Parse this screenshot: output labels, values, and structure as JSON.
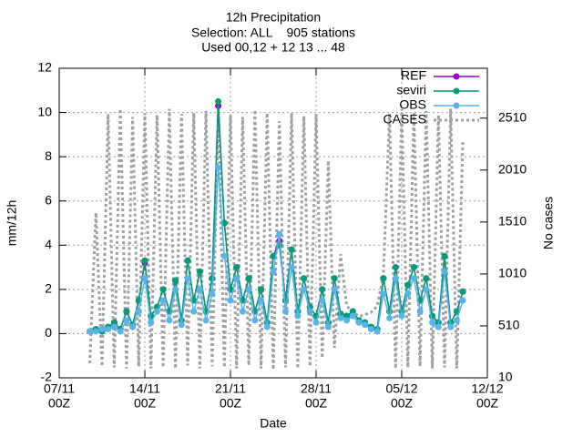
{
  "chart_data": {
    "type": "line",
    "title": [
      "12h Precipitation",
      "Selection: ALL    905 stations",
      "Used 00,12 + 12 13 ... 48"
    ],
    "xlabel": "Date",
    "ylabel": "mm/12h",
    "y2label": "No cases",
    "x": [
      "09/11 12Z",
      "10/11 00Z",
      "10/11 12Z",
      "11/11 00Z",
      "11/11 12Z",
      "12/11 00Z",
      "12/11 12Z",
      "13/11 00Z",
      "13/11 12Z",
      "14/11 00Z",
      "14/11 12Z",
      "15/11 00Z",
      "15/11 12Z",
      "16/11 00Z",
      "16/11 12Z",
      "17/11 00Z",
      "17/11 12Z",
      "18/11 00Z",
      "18/11 12Z",
      "19/11 00Z",
      "19/11 12Z",
      "20/11 00Z",
      "20/11 12Z",
      "21/11 00Z",
      "21/11 12Z",
      "22/11 00Z",
      "22/11 12Z",
      "23/11 00Z",
      "23/11 12Z",
      "24/11 00Z",
      "24/11 12Z",
      "25/11 00Z",
      "25/11 12Z",
      "26/11 00Z",
      "26/11 12Z",
      "27/11 00Z",
      "27/11 12Z",
      "28/11 00Z",
      "28/11 12Z",
      "29/11 00Z",
      "29/11 12Z",
      "30/11 00Z",
      "30/11 12Z",
      "01/12 00Z",
      "01/12 12Z",
      "02/12 00Z",
      "02/12 12Z",
      "03/12 00Z",
      "03/12 12Z",
      "04/12 00Z",
      "04/12 12Z",
      "05/12 00Z",
      "05/12 12Z",
      "06/12 00Z",
      "06/12 12Z",
      "07/12 00Z",
      "07/12 12Z",
      "08/12 00Z",
      "08/12 12Z",
      "09/12 00Z",
      "09/12 12Z",
      "10/12 00Z"
    ],
    "series": [
      {
        "name": "REF",
        "color": "#9400d3",
        "values": [
          0.1,
          0.2,
          0.1,
          0.3,
          0.5,
          0.2,
          1.0,
          0.4,
          1.5,
          3.2,
          0.8,
          1.2,
          2.0,
          1.0,
          2.4,
          0.6,
          3.3,
          1.5,
          2.8,
          1.0,
          2.5,
          10.3,
          5.0,
          2.0,
          3.0,
          1.5,
          2.5,
          1.0,
          2.0,
          0.5,
          3.5,
          4.2,
          1.5,
          3.8,
          1.0,
          2.5,
          1.2,
          0.8,
          2.0,
          0.5,
          2.5,
          0.9,
          0.8,
          1.0,
          0.6,
          0.5,
          0.3,
          0.2,
          2.5,
          1.0,
          3.0,
          1.0,
          2.2,
          3.0,
          1.5,
          2.5,
          0.8,
          0.5,
          3.5,
          0.5,
          1.0,
          1.9
        ]
      },
      {
        "name": "seviri",
        "color": "#009e73",
        "values": [
          0.1,
          0.2,
          0.1,
          0.3,
          0.5,
          0.2,
          1.0,
          0.4,
          1.5,
          3.3,
          0.8,
          1.2,
          2.0,
          1.0,
          2.4,
          0.6,
          3.3,
          1.5,
          2.8,
          1.0,
          2.5,
          10.5,
          5.0,
          2.0,
          3.0,
          1.5,
          2.5,
          1.0,
          2.0,
          0.5,
          3.5,
          4.0,
          1.5,
          3.8,
          1.0,
          2.5,
          1.2,
          0.8,
          2.0,
          0.5,
          2.5,
          0.9,
          0.8,
          1.0,
          0.6,
          0.5,
          0.3,
          0.2,
          2.5,
          1.0,
          3.0,
          1.0,
          2.2,
          3.0,
          1.5,
          2.5,
          0.8,
          0.5,
          3.5,
          0.5,
          1.0,
          1.9
        ]
      },
      {
        "name": "OBS",
        "color": "#56b4e9",
        "values": [
          0.1,
          0.1,
          0.2,
          0.2,
          0.3,
          0.1,
          0.6,
          0.3,
          1.0,
          2.5,
          0.5,
          1.0,
          1.5,
          0.6,
          2.0,
          0.4,
          2.5,
          1.0,
          2.0,
          0.6,
          1.8,
          7.5,
          3.5,
          1.5,
          2.5,
          1.0,
          2.0,
          0.6,
          1.5,
          0.3,
          2.8,
          4.5,
          1.0,
          3.0,
          0.8,
          2.0,
          1.0,
          0.5,
          1.5,
          0.3,
          2.0,
          0.7,
          0.6,
          0.8,
          0.5,
          0.4,
          0.2,
          0.1,
          1.8,
          0.7,
          2.5,
          0.8,
          1.8,
          2.5,
          1.0,
          2.0,
          0.5,
          0.3,
          2.8,
          0.3,
          0.6,
          1.5
        ]
      },
      {
        "name": "CASES",
        "color": "#a0a0a0",
        "axis": "y2",
        "dotted": true,
        "values": [
          150,
          1600,
          120,
          2550,
          110,
          2600,
          100,
          2520,
          120,
          2560,
          100,
          2540,
          110,
          2600,
          100,
          2550,
          130,
          2560,
          100,
          2580,
          120,
          2600,
          110,
          2540,
          100,
          2520,
          130,
          2590,
          100,
          2560,
          90,
          2480,
          110,
          2560,
          100,
          2530,
          120,
          2550,
          200,
          2100,
          300,
          1200,
          700,
          650,
          600,
          620,
          640,
          700,
          1000,
          2550,
          100,
          2600,
          110,
          2560,
          120,
          2580,
          100,
          2540,
          110,
          2600,
          100,
          2300
        ]
      }
    ],
    "xlim": [
      "07/11 00Z",
      "12/12 00Z"
    ],
    "xticks": [
      {
        "value": "07/11 00Z",
        "label": [
          "07/11",
          "00Z"
        ]
      },
      {
        "value": "14/11 00Z",
        "label": [
          "14/11",
          "00Z"
        ]
      },
      {
        "value": "21/11 00Z",
        "label": [
          "21/11",
          "00Z"
        ]
      },
      {
        "value": "28/11 00Z",
        "label": [
          "28/11",
          "00Z"
        ]
      },
      {
        "value": "05/12 00Z",
        "label": [
          "05/12",
          "00Z"
        ]
      },
      {
        "value": "12/12 00Z",
        "label": [
          "12/12",
          "00Z"
        ]
      }
    ],
    "ylim": [
      -2,
      12
    ],
    "yticks": [
      -2,
      0,
      2,
      4,
      6,
      8,
      10,
      12
    ],
    "y2lim": [
      10,
      2990
    ],
    "y2ticks": [
      10,
      510,
      1010,
      1510,
      2010,
      2510
    ],
    "grid": true,
    "legend": "top right"
  }
}
